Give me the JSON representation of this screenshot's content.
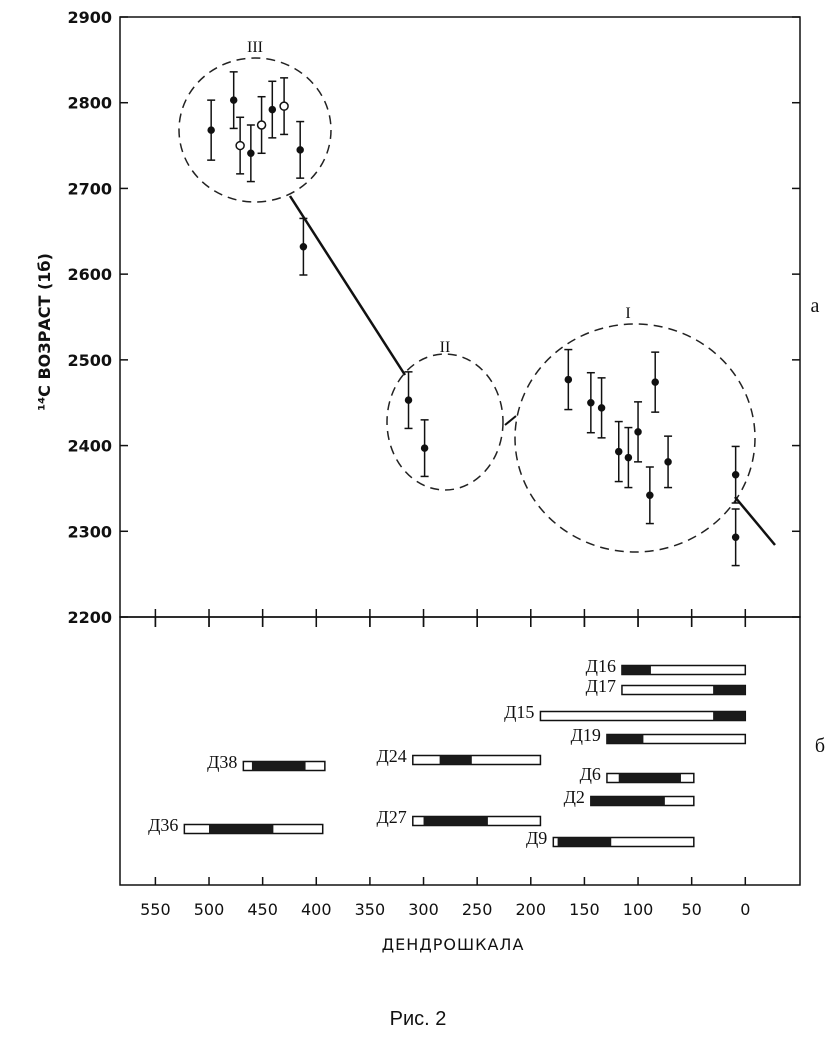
{
  "chart_data": [
    {
      "type": "errorbar",
      "y_label": "¹⁴C ВОЗРАСТ (1б)",
      "panel_label": "а",
      "annotations": [
        "III",
        "II",
        "I"
      ],
      "xlim": [
        583,
        -51
      ],
      "xticks": [
        550,
        500,
        450,
        400,
        350,
        300,
        250,
        200,
        150,
        100,
        50,
        0
      ],
      "ylim": [
        2200,
        2900
      ],
      "yticks": [
        2200,
        2300,
        2400,
        2500,
        2600,
        2700,
        2800,
        2900
      ],
      "x": [
        498,
        477,
        471,
        461,
        451,
        441,
        430,
        415,
        412,
        314,
        299,
        165,
        144,
        134,
        118,
        109,
        100,
        89,
        84,
        72,
        9,
        9
      ],
      "values": [
        2768,
        2803,
        2750,
        2741,
        2774,
        2792,
        2796,
        2745,
        2632,
        2453,
        2397,
        2477,
        2450,
        2444,
        2393,
        2386,
        2416,
        2342,
        2474,
        2381,
        2366,
        2293
      ],
      "errors": [
        35,
        33,
        33,
        33,
        33,
        33,
        33,
        33,
        33,
        33,
        33,
        35,
        35,
        35,
        35,
        35,
        35,
        33,
        35,
        30,
        33,
        33
      ],
      "open": [
        false,
        false,
        true,
        false,
        true,
        false,
        true,
        false,
        false,
        false,
        false,
        false,
        false,
        false,
        false,
        false,
        false,
        false,
        false,
        false,
        false,
        false
      ]
    },
    {
      "type": "range",
      "panel_label": "б",
      "x_label": "ДЕНДРОШКАЛА",
      "xlim": [
        583,
        -51
      ],
      "xticks": [
        550,
        500,
        450,
        400,
        350,
        300,
        250,
        200,
        150,
        100,
        50,
        0
      ],
      "categories": [
        "Д16",
        "Д17",
        "Д15",
        "Д19",
        "Д38",
        "Д24",
        "Д6",
        "Д2",
        "Д27",
        "Д36",
        "Д9"
      ],
      "starts": [
        115,
        115,
        191,
        129,
        468,
        310,
        129,
        144,
        310,
        523,
        179
      ],
      "ends": [
        0,
        0,
        0,
        0,
        392,
        191,
        48,
        48,
        191,
        394,
        48
      ],
      "dark_starts": [
        115,
        30,
        30,
        129,
        460,
        285,
        118,
        144,
        300,
        500,
        175
      ],
      "dark_ends": [
        88,
        0,
        0,
        95,
        410,
        255,
        60,
        75,
        240,
        440,
        125
      ]
    }
  ]
}
